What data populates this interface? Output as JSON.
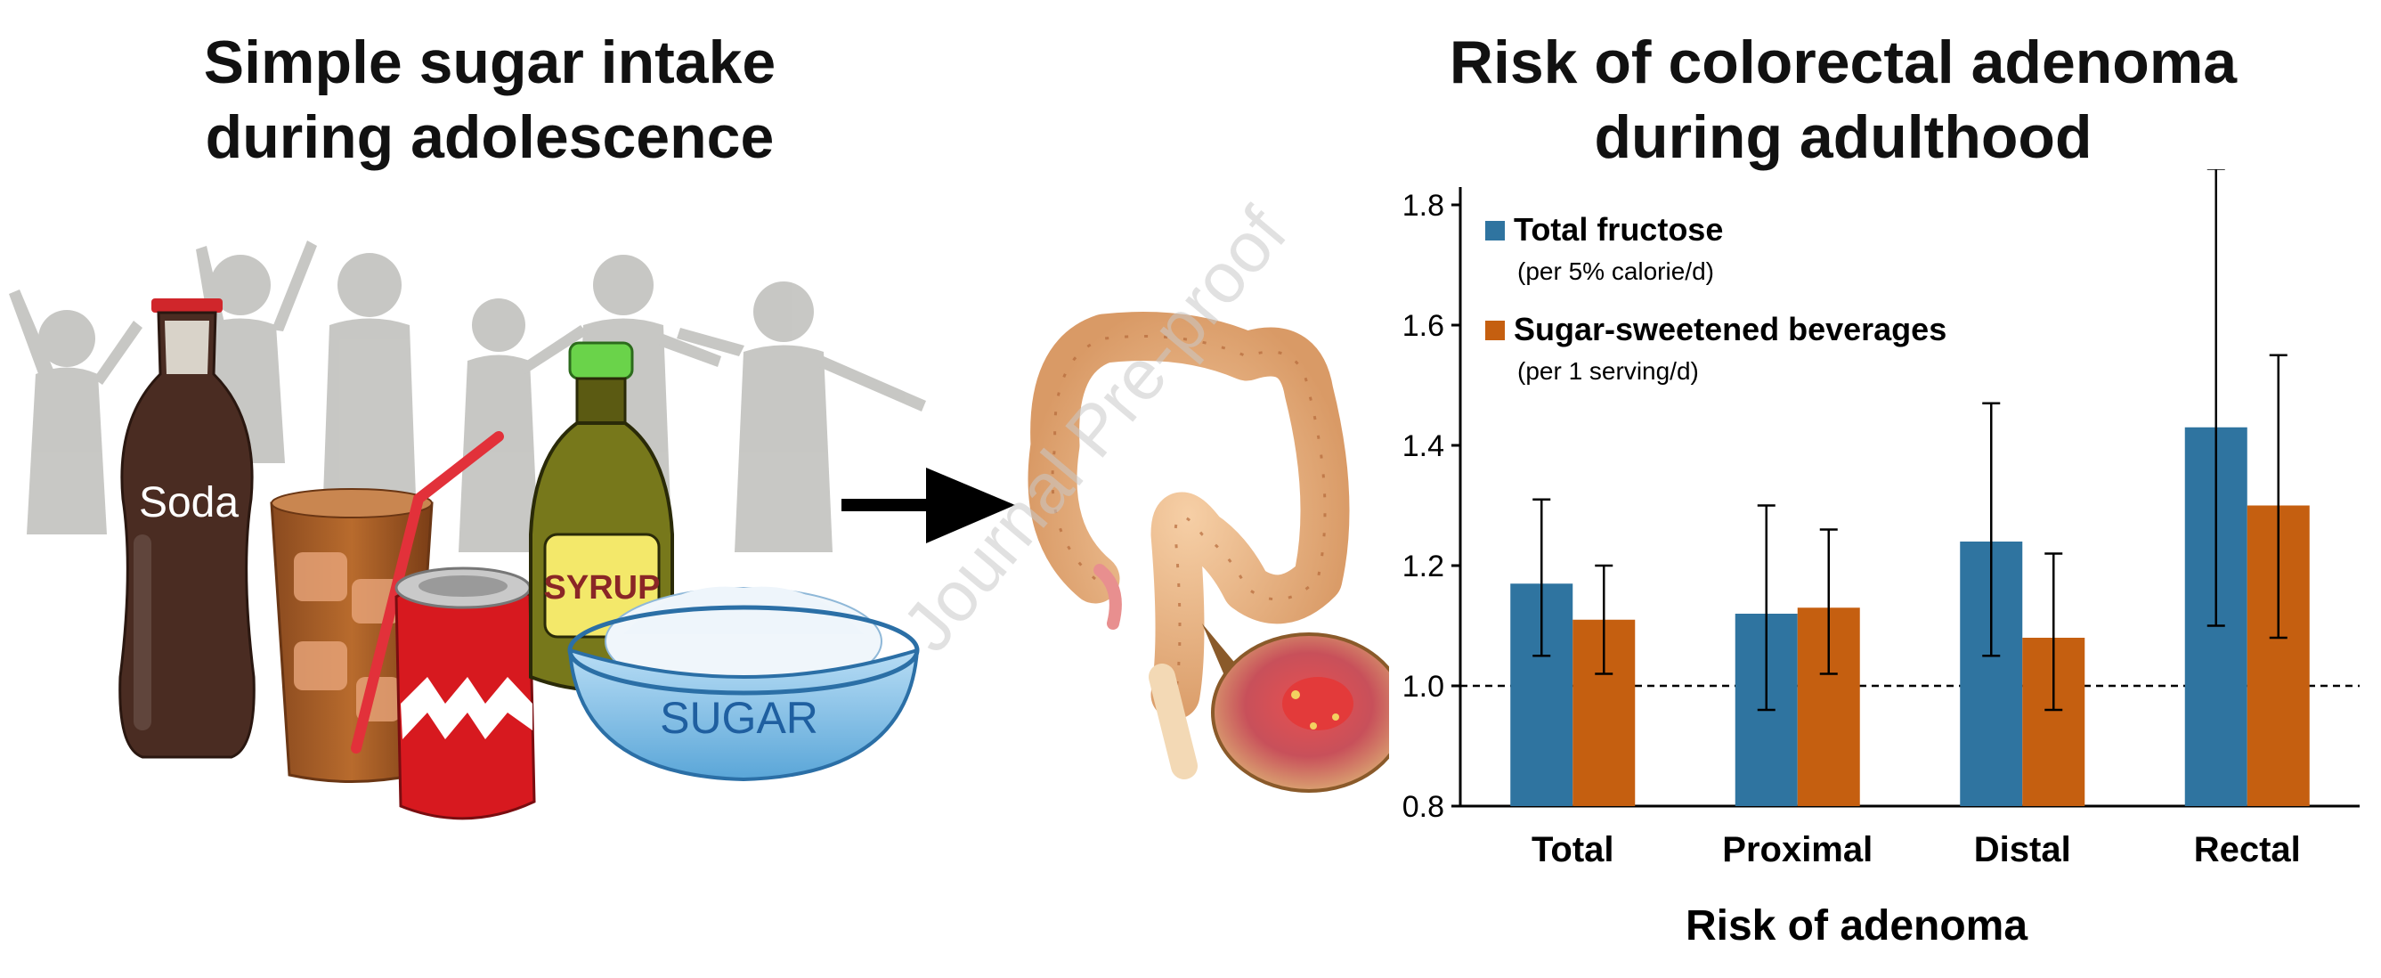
{
  "left_panel": {
    "title_line1": "Simple sugar intake",
    "title_line2": "during adolescence",
    "soda_label": "Soda",
    "syrup_label": "SYRUP",
    "sugar_label": "SUGAR"
  },
  "right_panel": {
    "title_line1": "Risk of colorectal adenoma",
    "title_line2": "during adulthood"
  },
  "watermark": "Journal Pre-proof",
  "colors": {
    "total_fructose": "#2f74a0",
    "ssb": "#c55f10"
  },
  "chart_data": {
    "type": "bar",
    "categories": [
      "Total",
      "Proximal",
      "Distal",
      "Rectal"
    ],
    "series": [
      {
        "name": "Total fructose",
        "note": "(per 5% calorie/d)",
        "values": [
          1.17,
          1.12,
          1.24,
          1.43
        ],
        "ci_low": [
          1.05,
          0.96,
          1.05,
          1.1
        ],
        "ci_high": [
          1.31,
          1.3,
          1.47,
          1.86
        ]
      },
      {
        "name": "Sugar-sweetened beverages",
        "note": "(per 1 serving/d)",
        "values": [
          1.11,
          1.13,
          1.08,
          1.3
        ],
        "ci_low": [
          1.02,
          1.02,
          0.96,
          1.08
        ],
        "ci_high": [
          1.2,
          1.26,
          1.22,
          1.55
        ]
      }
    ],
    "xlabel": "Risk of adenoma",
    "ylabel": "",
    "ylim": [
      0.8,
      1.8
    ],
    "yticks": [
      "0.8",
      "1.0",
      "1.2",
      "1.4",
      "1.6",
      "1.8"
    ],
    "reference_line": 1.0,
    "legend_position": "top-left",
    "grid": false
  }
}
